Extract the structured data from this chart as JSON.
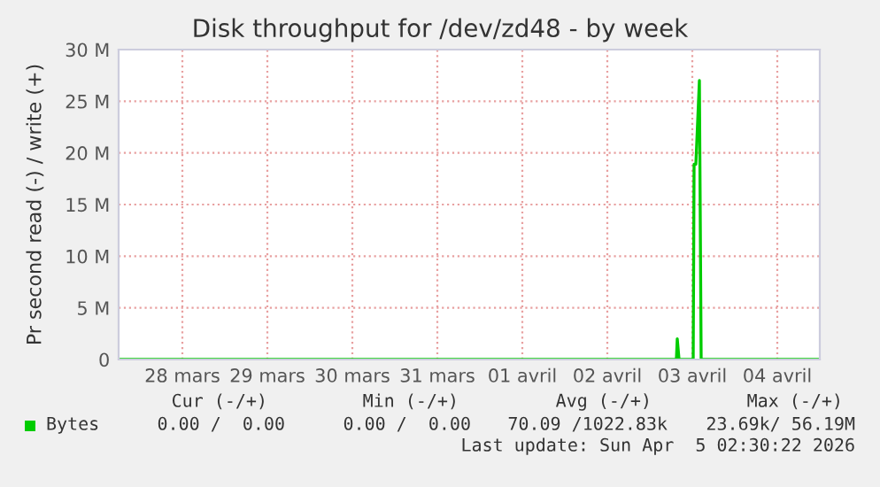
{
  "chart_data": {
    "type": "line",
    "title": "Disk throughput for /dev/zd48 - by week",
    "ylabel": "Pr second read (-) / write (+)",
    "series": [
      {
        "name": "Bytes",
        "color": "#00cc00",
        "x": [
          "2026-03-27T18:00",
          "2026-04-03T07:30",
          "2026-04-03T07:45",
          "2026-04-03T08:15",
          "2026-04-03T12:15",
          "2026-04-03T12:30",
          "2026-04-03T13:00",
          "2026-04-03T14:00",
          "2026-04-03T14:30",
          "2026-04-05T00:00"
        ],
        "values": [
          0,
          0,
          2,
          0,
          0,
          18.9,
          18.9,
          27,
          0,
          0
        ]
      }
    ],
    "xlim": [
      "2026-03-27T18:00",
      "2026-04-05T00:00"
    ],
    "xticks": [
      {
        "value": "2026-03-28T12:00",
        "label": "28 mars"
      },
      {
        "value": "2026-03-29T12:00",
        "label": "29 mars"
      },
      {
        "value": "2026-03-30T12:00",
        "label": "30 mars"
      },
      {
        "value": "2026-03-31T12:00",
        "label": "31 mars"
      },
      {
        "value": "2026-04-01T12:00",
        "label": "01 avril"
      },
      {
        "value": "2026-04-02T12:00",
        "label": "02 avril"
      },
      {
        "value": "2026-04-03T12:00",
        "label": "03 avril"
      },
      {
        "value": "2026-04-04T12:00",
        "label": "04 avril"
      }
    ],
    "ylim": [
      0,
      30
    ],
    "yticks": [
      {
        "value": 0,
        "label": "0"
      },
      {
        "value": 5,
        "label": "5 M"
      },
      {
        "value": 10,
        "label": "10 M"
      },
      {
        "value": 15,
        "label": "15 M"
      },
      {
        "value": 20,
        "label": "20 M"
      },
      {
        "value": 25,
        "label": "25 M"
      },
      {
        "value": 30,
        "label": "30 M"
      }
    ],
    "grid": true,
    "legend": "bottom left",
    "annotations": [
      "Cur (-/+)",
      "Min (-/+)",
      "Avg (-/+)",
      "Max (-/+)",
      "0.00 /  0.00",
      "0.00 /  0.00",
      "70.09 /1022.83k",
      "23.69k/ 56.19M",
      "Last update: Sun Apr  5 02:30:22 2026"
    ]
  }
}
